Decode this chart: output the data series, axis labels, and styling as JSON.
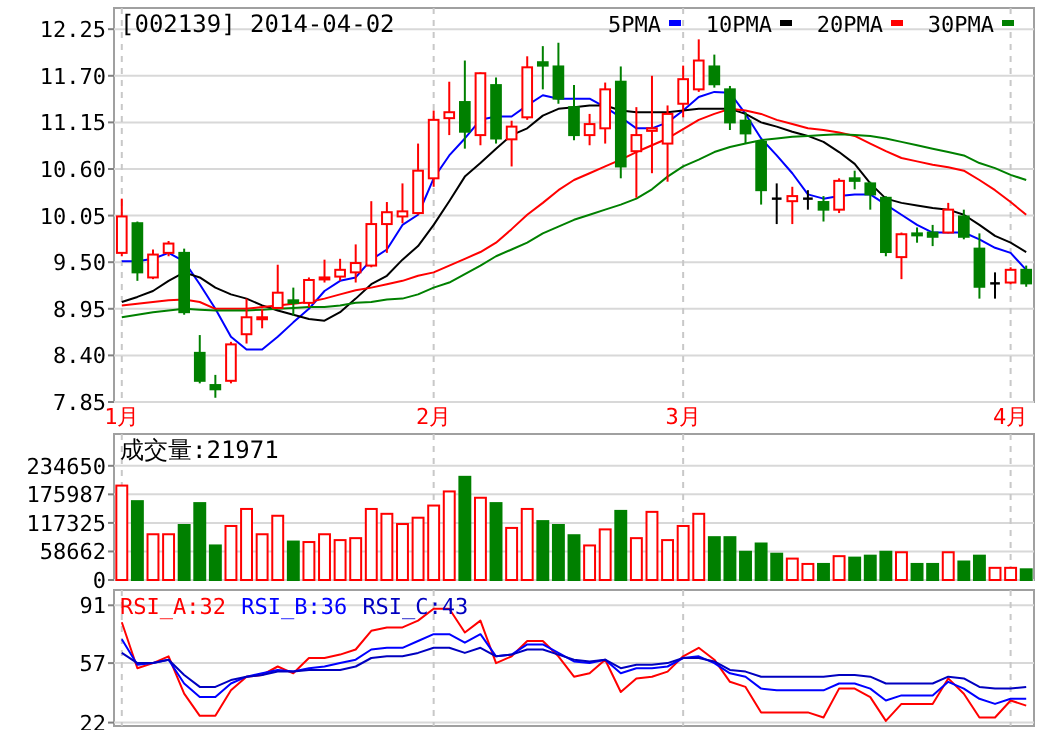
{
  "chart_data": [
    {
      "type": "candlestick",
      "title": "[002139] 2014-04-02",
      "grid": true,
      "legend": "top right",
      "categories": [
        "1月",
        null,
        null,
        null,
        null,
        null,
        null,
        null,
        null,
        null,
        null,
        null,
        null,
        null,
        null,
        null,
        null,
        null,
        null,
        null,
        "2月",
        null,
        null,
        null,
        null,
        null,
        null,
        null,
        null,
        null,
        null,
        null,
        null,
        null,
        null,
        null,
        "3月",
        null,
        null,
        null,
        null,
        null,
        null,
        null,
        null,
        null,
        null,
        null,
        null,
        null,
        null,
        null,
        null,
        null,
        null,
        null,
        null,
        "4月",
        null
      ],
      "ylim": [
        7.85,
        12.5
      ],
      "yticks": [
        12.25,
        {
          "value": 11.7,
          "label": "11.70"
        },
        11.15,
        {
          "value": 10.6,
          "label": "10.60"
        },
        10.05,
        {
          "value": 9.5,
          "label": "9.50"
        },
        8.95,
        {
          "value": 8.4,
          "label": "8.40"
        },
        7.85
      ],
      "ohlc": [
        [
          9.61,
          10.25,
          9.57,
          10.04
        ],
        [
          9.96,
          9.98,
          9.28,
          9.38
        ],
        [
          9.32,
          9.65,
          9.3,
          9.59
        ],
        [
          9.61,
          9.75,
          9.57,
          9.72
        ],
        [
          9.61,
          9.66,
          8.88,
          8.91
        ],
        [
          8.43,
          8.64,
          8.07,
          8.1
        ],
        [
          8.05,
          8.17,
          7.9,
          8.0
        ],
        [
          8.1,
          8.56,
          8.07,
          8.53
        ],
        [
          8.65,
          9.07,
          8.54,
          8.85
        ],
        [
          8.83,
          8.95,
          8.72,
          8.85
        ],
        [
          8.96,
          9.47,
          8.95,
          9.14
        ],
        [
          9.05,
          9.2,
          8.87,
          9.02
        ],
        [
          9.02,
          9.32,
          8.97,
          9.29
        ],
        [
          9.3,
          9.53,
          9.26,
          9.32
        ],
        [
          9.33,
          9.54,
          9.28,
          9.41
        ],
        [
          9.38,
          9.71,
          9.26,
          9.49
        ],
        [
          9.46,
          10.22,
          9.44,
          9.95
        ],
        [
          9.95,
          10.21,
          9.61,
          10.09
        ],
        [
          10.04,
          10.43,
          9.96,
          10.1
        ],
        [
          10.08,
          10.9,
          10.06,
          10.58
        ],
        [
          10.49,
          11.29,
          10.39,
          11.18
        ],
        [
          11.2,
          11.63,
          11.0,
          11.27
        ],
        [
          11.39,
          11.88,
          10.84,
          11.04
        ],
        [
          11.0,
          11.74,
          10.88,
          11.73
        ],
        [
          11.59,
          11.68,
          10.9,
          10.96
        ],
        [
          10.95,
          11.17,
          10.63,
          11.1
        ],
        [
          11.21,
          11.93,
          11.18,
          11.8
        ],
        [
          11.86,
          12.05,
          11.54,
          11.82
        ],
        [
          11.81,
          12.09,
          11.37,
          11.43
        ],
        [
          11.33,
          11.59,
          10.94,
          11.0
        ],
        [
          11.0,
          11.25,
          10.88,
          11.13
        ],
        [
          11.08,
          11.62,
          10.9,
          11.54
        ],
        [
          11.63,
          11.81,
          10.49,
          10.63
        ],
        [
          10.81,
          11.33,
          10.26,
          11.0
        ],
        [
          11.05,
          11.7,
          10.55,
          11.08
        ],
        [
          10.9,
          11.35,
          10.45,
          11.25
        ],
        [
          11.37,
          11.82,
          11.21,
          11.66
        ],
        [
          11.54,
          12.13,
          11.51,
          11.88
        ],
        [
          11.81,
          11.95,
          11.56,
          11.6
        ],
        [
          11.54,
          11.58,
          11.06,
          11.15
        ],
        [
          11.17,
          11.27,
          10.9,
          11.02
        ],
        [
          10.92,
          10.94,
          10.18,
          10.35
        ],
        [
          10.25,
          10.43,
          9.95,
          10.25
        ],
        [
          10.22,
          10.39,
          9.95,
          10.28
        ],
        [
          10.25,
          10.35,
          10.12,
          10.25
        ],
        [
          10.21,
          10.28,
          9.98,
          10.12
        ],
        [
          10.12,
          10.49,
          10.08,
          10.46
        ],
        [
          10.49,
          10.58,
          10.36,
          10.46
        ],
        [
          10.43,
          10.45,
          10.12,
          10.3
        ],
        [
          10.26,
          10.28,
          9.57,
          9.62
        ],
        [
          9.56,
          9.85,
          9.3,
          9.83
        ],
        [
          9.84,
          9.91,
          9.73,
          9.82
        ],
        [
          9.85,
          9.94,
          9.69,
          9.8
        ],
        [
          9.85,
          10.2,
          9.84,
          10.12
        ],
        [
          10.04,
          10.12,
          9.77,
          9.8
        ],
        [
          9.66,
          9.84,
          9.07,
          9.21
        ],
        [
          9.25,
          9.38,
          9.07,
          9.25
        ],
        [
          9.26,
          9.44,
          9.24,
          9.41
        ],
        [
          9.41,
          9.46,
          9.21,
          9.25
        ]
      ],
      "colors": [
        "#ff0000",
        "#008000",
        "#ff0000",
        "#ff0000",
        "#008000",
        "#008000",
        "#008000",
        "#ff0000",
        "#ff0000",
        "#ff0000",
        "#ff0000",
        "#008000",
        "#ff0000",
        "#ff0000",
        "#ff0000",
        "#ff0000",
        "#ff0000",
        "#ff0000",
        "#ff0000",
        "#ff0000",
        "#ff0000",
        "#ff0000",
        "#008000",
        "#ff0000",
        "#008000",
        "#ff0000",
        "#ff0000",
        "#008000",
        "#008000",
        "#008000",
        "#ff0000",
        "#ff0000",
        "#008000",
        "#ff0000",
        "#ff0000",
        "#ff0000",
        "#ff0000",
        "#ff0000",
        "#008000",
        "#008000",
        "#008000",
        "#008000",
        "#000000",
        "#ff0000",
        "#000000",
        "#008000",
        "#ff0000",
        "#008000",
        "#008000",
        "#008000",
        "#ff0000",
        "#008000",
        "#008000",
        "#ff0000",
        "#008000",
        "#008000",
        "#000000",
        "#ff0000",
        "#008000"
      ],
      "series": [
        {
          "name": "5PMA",
          "type": "line",
          "color": "#0000ff",
          "values": [
            9.51,
            9.51,
            9.54,
            9.61,
            9.51,
            9.24,
            8.95,
            8.62,
            8.47,
            8.47,
            8.62,
            8.79,
            8.95,
            9.16,
            9.28,
            9.32,
            9.53,
            9.65,
            9.94,
            10.06,
            10.49,
            10.76,
            10.96,
            11.18,
            11.22,
            11.22,
            11.35,
            11.47,
            11.43,
            11.43,
            11.43,
            11.33,
            11.21,
            11.08,
            11.08,
            11.15,
            11.29,
            11.45,
            11.51,
            11.5,
            11.25,
            10.96,
            10.76,
            10.55,
            10.3,
            10.25,
            10.28,
            10.3,
            10.3,
            10.18,
            10.06,
            9.94,
            9.85,
            9.85,
            9.85,
            9.77,
            9.67,
            9.61,
            9.41
          ]
        },
        {
          "name": "10PMA",
          "type": "line",
          "color": "#000000",
          "values": [
            9.03,
            9.09,
            9.16,
            9.28,
            9.38,
            9.32,
            9.2,
            9.12,
            9.07,
            8.99,
            8.93,
            8.88,
            8.83,
            8.81,
            8.91,
            9.07,
            9.24,
            9.34,
            9.53,
            9.69,
            9.94,
            10.22,
            10.51,
            10.67,
            10.84,
            11.0,
            11.08,
            11.23,
            11.31,
            11.33,
            11.35,
            11.35,
            11.29,
            11.27,
            11.27,
            11.27,
            11.29,
            11.31,
            11.31,
            11.31,
            11.25,
            11.15,
            11.1,
            11.04,
            10.99,
            10.92,
            10.8,
            10.66,
            10.43,
            10.25,
            10.2,
            10.17,
            10.14,
            10.12,
            10.06,
            9.94,
            9.81,
            9.73,
            9.62
          ]
        },
        {
          "name": "20PMA",
          "type": "line",
          "color": "#ff0000",
          "values": [
            8.99,
            9.01,
            9.03,
            9.05,
            9.06,
            9.03,
            8.95,
            8.95,
            8.95,
            8.97,
            8.99,
            9.01,
            9.03,
            9.07,
            9.12,
            9.17,
            9.2,
            9.24,
            9.28,
            9.34,
            9.38,
            9.46,
            9.54,
            9.62,
            9.73,
            9.89,
            10.06,
            10.2,
            10.35,
            10.47,
            10.55,
            10.63,
            10.71,
            10.8,
            10.88,
            10.96,
            11.07,
            11.18,
            11.25,
            11.31,
            11.29,
            11.25,
            11.18,
            11.13,
            11.08,
            11.06,
            11.03,
            10.99,
            10.9,
            10.81,
            10.73,
            10.69,
            10.65,
            10.62,
            10.58,
            10.47,
            10.35,
            10.21,
            10.06
          ]
        },
        {
          "name": "30PMA",
          "type": "line",
          "color": "#008000",
          "values": [
            8.85,
            8.88,
            8.91,
            8.93,
            8.95,
            8.94,
            8.93,
            8.93,
            8.93,
            8.94,
            8.95,
            8.96,
            8.97,
            8.97,
            8.99,
            9.02,
            9.03,
            9.06,
            9.07,
            9.12,
            9.2,
            9.26,
            9.36,
            9.46,
            9.57,
            9.65,
            9.73,
            9.84,
            9.92,
            10.0,
            10.06,
            10.12,
            10.18,
            10.25,
            10.36,
            10.51,
            10.63,
            10.71,
            10.8,
            10.86,
            10.9,
            10.94,
            10.96,
            10.98,
            10.99,
            11.0,
            11.01,
            11.0,
            10.99,
            10.96,
            10.92,
            10.88,
            10.84,
            10.8,
            10.76,
            10.67,
            10.61,
            10.53,
            10.47
          ]
        }
      ]
    },
    {
      "type": "bar",
      "title": "成交量:21971",
      "grid": true,
      "tick_labels": "y",
      "categories": [
        null,
        null,
        null,
        null,
        null,
        null,
        null,
        null,
        null,
        null,
        null,
        null,
        null,
        null,
        null,
        null,
        null,
        null,
        null,
        null,
        null,
        null,
        null,
        null,
        null,
        null,
        null,
        null,
        null,
        null,
        null,
        null,
        null,
        null,
        null,
        null,
        null,
        null,
        null,
        null,
        null,
        null,
        null,
        null,
        null,
        null,
        null,
        null,
        null,
        null,
        null,
        null,
        null,
        null,
        null,
        null,
        null,
        null,
        null
      ],
      "ylim": [
        0,
        300000
      ],
      "yticks": [
        0,
        58662,
        117325,
        175987,
        234650
      ],
      "values": [
        194000,
        162000,
        94000,
        94000,
        113000,
        158000,
        71000,
        111000,
        146000,
        94000,
        132000,
        79000,
        78000,
        94000,
        82000,
        86000,
        146000,
        136000,
        115000,
        128000,
        153000,
        182000,
        212000,
        169000,
        158000,
        107000,
        146000,
        121000,
        113000,
        92000,
        71000,
        104000,
        142000,
        86000,
        140000,
        82000,
        111000,
        136000,
        88000,
        88000,
        58000,
        75000,
        54000,
        44000,
        33000,
        33000,
        49000,
        46000,
        50000,
        58000,
        57000,
        33000,
        33000,
        57000,
        38000,
        50000,
        25000,
        25000,
        21971
      ],
      "colors": [
        "#ff0000",
        "#008000",
        "#ff0000",
        "#ff0000",
        "#008000",
        "#008000",
        "#008000",
        "#ff0000",
        "#ff0000",
        "#ff0000",
        "#ff0000",
        "#008000",
        "#ff0000",
        "#ff0000",
        "#ff0000",
        "#ff0000",
        "#ff0000",
        "#ff0000",
        "#ff0000",
        "#ff0000",
        "#ff0000",
        "#ff0000",
        "#008000",
        "#ff0000",
        "#008000",
        "#ff0000",
        "#ff0000",
        "#008000",
        "#008000",
        "#008000",
        "#ff0000",
        "#ff0000",
        "#008000",
        "#ff0000",
        "#ff0000",
        "#ff0000",
        "#ff0000",
        "#ff0000",
        "#008000",
        "#008000",
        "#008000",
        "#008000",
        "#008000",
        "#ff0000",
        "#ff0000",
        "#008000",
        "#ff0000",
        "#008000",
        "#008000",
        "#008000",
        "#ff0000",
        "#008000",
        "#008000",
        "#ff0000",
        "#008000",
        "#008000",
        "#ff0000",
        "#ff0000",
        "#008000"
      ]
    },
    {
      "type": "line",
      "grid": true,
      "tick_labels": "y",
      "legend": "top left",
      "categories": [
        null,
        null,
        null,
        null,
        null,
        null,
        null,
        null,
        null,
        null,
        null,
        null,
        null,
        null,
        null,
        null,
        null,
        null,
        null,
        null,
        null,
        null,
        null,
        null,
        null,
        null,
        null,
        null,
        null,
        null,
        null,
        null,
        null,
        null,
        null,
        null,
        null,
        null,
        null,
        null,
        null,
        null,
        null,
        null,
        null,
        null,
        null,
        null,
        null,
        null,
        null,
        null,
        null,
        null,
        null,
        null,
        null,
        null,
        null
      ],
      "ylim": [
        20,
        100
      ],
      "yticks": [
        91,
        57,
        22
      ],
      "series": [
        {
          "name": "RSI_A:32",
          "color": "#ff0000",
          "values": [
            81,
            54,
            57,
            61,
            39,
            26,
            26,
            41,
            49,
            50,
            55,
            51,
            60,
            60,
            62,
            65,
            76,
            78,
            78,
            82,
            89,
            89,
            75,
            82,
            57,
            61,
            70,
            70,
            61,
            49,
            51,
            59,
            40,
            48,
            49,
            52,
            61,
            66,
            59,
            46,
            43,
            28,
            28,
            28,
            28,
            25,
            42,
            42,
            37,
            23,
            33,
            33,
            33,
            48,
            39,
            25,
            25,
            35,
            32
          ]
        },
        {
          "name": "RSI_B:36",
          "color": "#0000ff",
          "values": [
            71,
            56,
            57,
            59,
            45,
            37,
            37,
            45,
            49,
            51,
            53,
            52,
            54,
            55,
            57,
            59,
            65,
            66,
            66,
            70,
            74,
            74,
            69,
            74,
            61,
            62,
            68,
            68,
            63,
            58,
            57,
            59,
            51,
            54,
            54,
            55,
            60,
            61,
            57,
            51,
            49,
            42,
            41,
            41,
            41,
            41,
            45,
            45,
            42,
            35,
            38,
            38,
            38,
            46,
            42,
            36,
            33,
            36,
            36
          ]
        },
        {
          "name": "RSI_C:43",
          "color": "#0000c0",
          "values": [
            63,
            57,
            57,
            59,
            50,
            43,
            43,
            47,
            49,
            50,
            52,
            52,
            53,
            53,
            53,
            55,
            60,
            61,
            61,
            63,
            66,
            66,
            63,
            66,
            61,
            62,
            65,
            65,
            62,
            59,
            58,
            59,
            54,
            56,
            56,
            57,
            60,
            60,
            58,
            53,
            52,
            49,
            49,
            49,
            49,
            49,
            50,
            50,
            49,
            45,
            45,
            45,
            45,
            49,
            48,
            43,
            42,
            42,
            43
          ]
        }
      ]
    }
  ]
}
